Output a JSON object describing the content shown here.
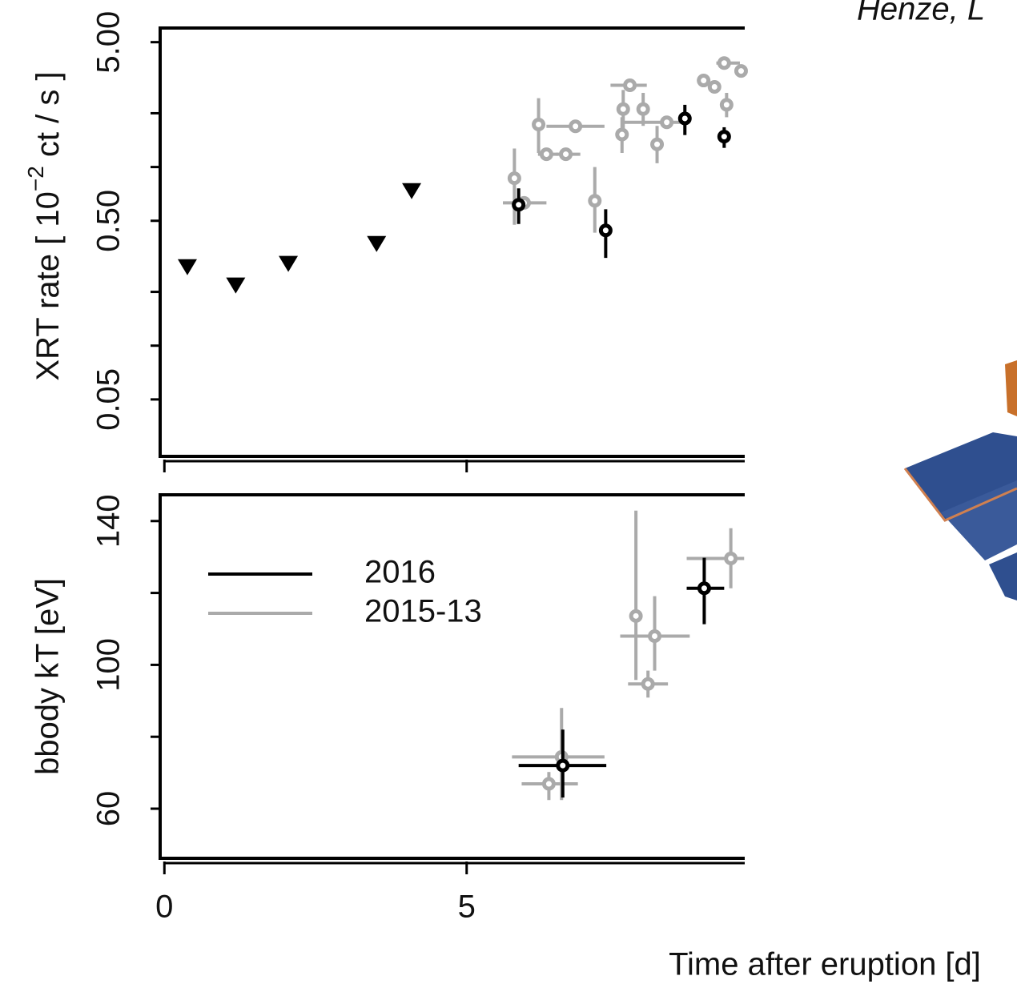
{
  "header": "Henze, L",
  "chart_data": [
    {
      "type": "scatter",
      "ylabel_parts": [
        "XRT rate [ 10",
        "−2",
        " ct / s ]"
      ],
      "log_y": true,
      "xlim": [
        -0.07,
        9.6
      ],
      "ylim": [
        0.024,
        6.0
      ],
      "xticks": [
        0,
        5
      ],
      "yticks": [
        {
          "value": 5,
          "label": "5.00"
        },
        {
          "value": 0.5,
          "label": "0.50"
        },
        {
          "value": 0.05,
          "label": "0.05"
        }
      ],
      "y_minor_ticks": [
        2,
        1,
        0.2,
        0.1
      ],
      "series": [
        {
          "color": "#000000",
          "marker": "triangle",
          "x": [
            0.38,
            1.18,
            2.05,
            3.51,
            4.09
          ],
          "values": [
            0.275,
            0.217,
            0.287,
            0.371,
            0.733
          ]
        },
        {
          "color": "#000000",
          "marker": "circle",
          "x": [
            5.86,
            7.3,
            8.61,
            9.26
          ],
          "values": [
            0.615,
            0.442,
            1.87,
            1.48
          ],
          "y_low": [
            0.48,
            0.31,
            1.51,
            1.28
          ],
          "y_high": [
            0.76,
            0.58,
            2.23,
            1.67
          ]
        },
        {
          "color": "#aaaaaa",
          "marker": "circle",
          "x": [
            5.79,
            5.95,
            6.19,
            6.32,
            6.64,
            6.8,
            7.12,
            7.7,
            7.59,
            7.57,
            7.92,
            8.15,
            8.31,
            8.92,
            9.1,
            9.3,
            9.26,
            9.54
          ],
          "values": [
            0.865,
            0.63,
            1.73,
            1.18,
            1.18,
            1.69,
            0.647,
            2.87,
            2.11,
            1.52,
            2.11,
            1.34,
            1.78,
            3.05,
            2.81,
            2.23,
            3.82,
            3.45
          ],
          "y_low": [
            0.475,
            null,
            1.2,
            null,
            null,
            null,
            0.429,
            null,
            1.6,
            1.2,
            1.7,
            1.05,
            null,
            null,
            null,
            1.9,
            null,
            null
          ],
          "y_high": [
            1.27,
            null,
            2.43,
            null,
            null,
            null,
            1.0,
            null,
            2.7,
            1.9,
            2.6,
            1.7,
            null,
            null,
            null,
            2.6,
            null,
            null
          ],
          "x_low": [
            null,
            5.6,
            null,
            6.18,
            6.48,
            6.32,
            null,
            7.38,
            null,
            null,
            null,
            null,
            7.61,
            null,
            null,
            null,
            9.13,
            null
          ],
          "x_high": [
            null,
            6.32,
            null,
            6.51,
            6.88,
            7.28,
            null,
            7.98,
            null,
            null,
            null,
            null,
            8.6,
            null,
            null,
            null,
            9.52,
            null
          ]
        }
      ]
    },
    {
      "type": "scatter",
      "ylabel": "bbody kT [eV]",
      "xlabel": "Time after eruption [d]",
      "xlim": [
        -0.07,
        9.6
      ],
      "ylim": [
        46.2,
        147.3
      ],
      "xticks": [
        0,
        5
      ],
      "yticks": [
        60,
        100,
        140
      ],
      "y_minor_ticks": [
        80,
        120
      ],
      "legend": "top-left",
      "series": [
        {
          "name": "2016",
          "color": "#000000",
          "x": [
            6.59,
            8.93
          ],
          "values": [
            72.0,
            121.3
          ],
          "y_low": [
            63.1,
            111.3
          ],
          "y_high": [
            82.0,
            129.8
          ],
          "x_low": [
            5.86,
            8.64
          ],
          "x_high": [
            7.31,
            9.26
          ]
        },
        {
          "name": "2015-13",
          "color": "#aaaaaa",
          "x": [
            6.36,
            6.57,
            7.8,
            8.11,
            8.0,
            9.37
          ],
          "values": [
            66.9,
            74.4,
            113.6,
            108.0,
            94.7,
            129.6
          ],
          "y_low": [
            62.4,
            62.4,
            95.8,
            98.4,
            90.9,
            121.3
          ],
          "y_high": [
            70.2,
            88.0,
            142.9,
            119.1,
            98.4,
            138.0
          ],
          "x_low": [
            5.91,
            5.75,
            null,
            7.54,
            7.67,
            8.64
          ],
          "x_high": [
            6.84,
            7.28,
            null,
            8.69,
            8.33,
            9.59
          ]
        }
      ]
    }
  ]
}
